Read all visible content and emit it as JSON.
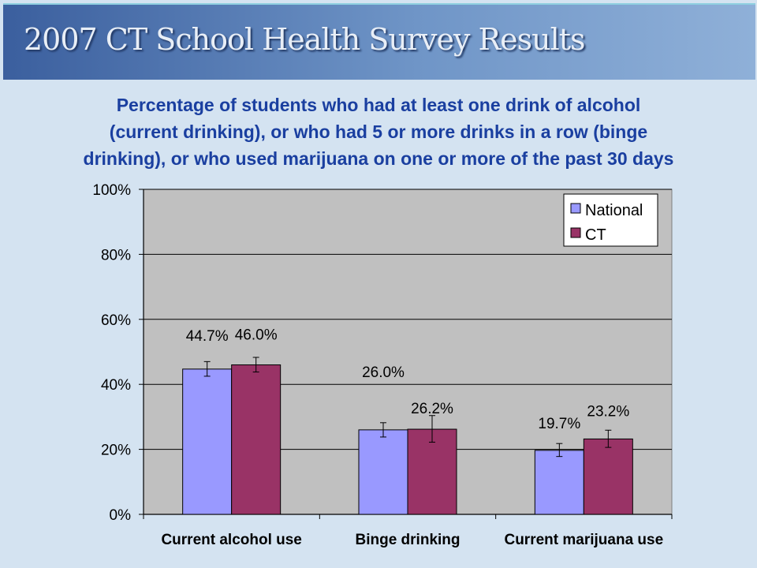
{
  "banner": {
    "title": "2007 CT School Health Survey Results"
  },
  "subtitle": {
    "line1": "Percentage of students who had at least one drink of alcohol",
    "line2": "(current drinking), or who had 5 or more drinks in a row (binge",
    "line3": "drinking), or who used marijuana on one or more of the past 30 days"
  },
  "chart_data": {
    "type": "bar",
    "categories": [
      "Current alcohol use",
      "Binge drinking",
      "Current marijuana use"
    ],
    "series": [
      {
        "name": "National",
        "color": "#9999ff",
        "values": [
          44.7,
          26.0,
          19.7
        ],
        "labels": [
          "44.7%",
          "26.0%",
          "19.7%"
        ],
        "error": [
          [
            42.5,
            47.0
          ],
          [
            23.8,
            28.2
          ],
          [
            17.8,
            21.8
          ]
        ]
      },
      {
        "name": "CT",
        "color": "#993366",
        "values": [
          46.0,
          26.2,
          23.2
        ],
        "labels": [
          "46.0%",
          "26.2%",
          "23.2%"
        ],
        "error": [
          [
            43.8,
            48.3
          ],
          [
            22.2,
            30.4
          ],
          [
            20.6,
            25.9
          ]
        ]
      }
    ],
    "ylim": [
      0,
      100
    ],
    "yticks": [
      0,
      20,
      40,
      60,
      80,
      100
    ],
    "ytick_labels": [
      "0%",
      "20%",
      "40%",
      "60%",
      "80%",
      "100%"
    ],
    "grid": true,
    "legend": "top-right",
    "plot_background": "#c0c0c0"
  }
}
